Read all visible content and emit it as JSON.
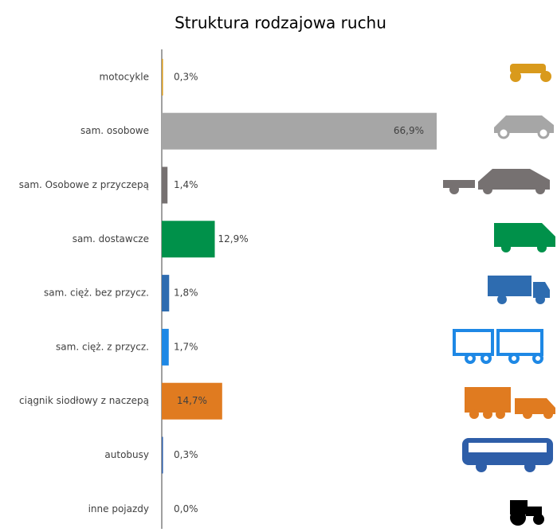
{
  "chart_data": {
    "type": "bar",
    "orientation": "horizontal",
    "title": "Struktura rodzajowa ruchu",
    "categories": [
      "motocykle",
      "sam. osobowe",
      "sam. Osobowe z przyczepą",
      "sam. dostawcze",
      "sam. cięż. bez przycz.",
      "sam. cięż. z przycz.",
      "ciągnik siodłowy z naczepą",
      "autobusy",
      "inne pojazdy"
    ],
    "values": [
      0.3,
      66.9,
      1.4,
      12.9,
      1.8,
      1.7,
      14.7,
      0.3,
      0.0
    ],
    "value_labels": [
      "0,3%",
      "66,9%",
      "1,4%",
      "12,9%",
      "1,8%",
      "1,7%",
      "14,7%",
      "0,3%",
      "0,0%"
    ],
    "colors": [
      "#d99a1c",
      "#a6a6a6",
      "#767171",
      "#00914a",
      "#2e6cb0",
      "#1e88e5",
      "#e07b20",
      "#2e5ea8",
      "#000000"
    ]
  }
}
